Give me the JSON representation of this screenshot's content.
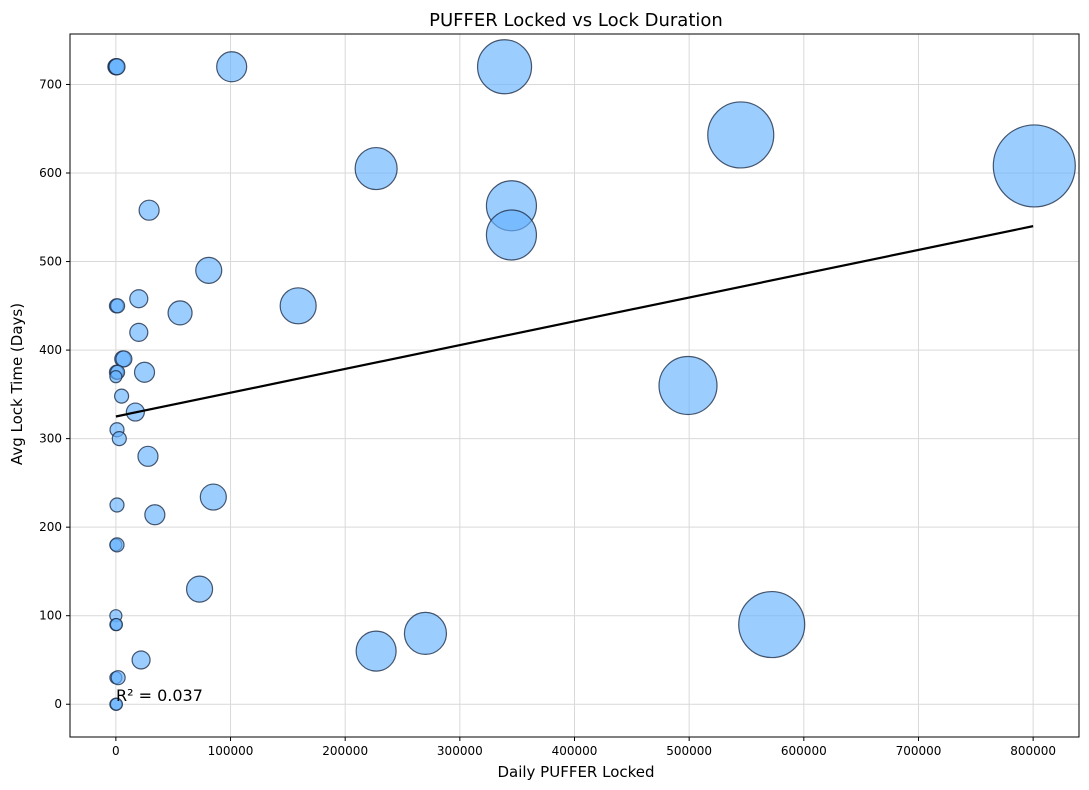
{
  "chart_data": {
    "type": "scatter",
    "title": "PUFFER Locked vs Lock Duration",
    "xlabel": "Daily PUFFER Locked",
    "ylabel": "Avg Lock Time (Days)",
    "xlim": [
      -40000,
      840000
    ],
    "ylim": [
      -37,
      757
    ],
    "xticks": [
      0,
      100000,
      200000,
      300000,
      400000,
      500000,
      600000,
      700000,
      800000
    ],
    "yticks": [
      0,
      100,
      200,
      300,
      400,
      500,
      600,
      700
    ],
    "grid": true,
    "annotation": "R² = 0.037",
    "colors": {
      "marker_fill": "#66b2ff",
      "marker_edge": "#1f2f4a",
      "trend": "#000000",
      "grid": "#d9d9d9"
    },
    "trendline": {
      "x": [
        0,
        800000
      ],
      "y": [
        325,
        540
      ]
    },
    "points": [
      {
        "x": 0,
        "y": 720,
        "size": 8
      },
      {
        "x": 500,
        "y": 720,
        "size": 8
      },
      {
        "x": 1000,
        "y": 720,
        "size": 8
      },
      {
        "x": 101000,
        "y": 720,
        "size": 15
      },
      {
        "x": 339000,
        "y": 720,
        "size": 27
      },
      {
        "x": 545000,
        "y": 643,
        "size": 33
      },
      {
        "x": 801000,
        "y": 608,
        "size": 41
      },
      {
        "x": 227000,
        "y": 605,
        "size": 21
      },
      {
        "x": 345000,
        "y": 563,
        "size": 25
      },
      {
        "x": 345000,
        "y": 530,
        "size": 25
      },
      {
        "x": 29000,
        "y": 558,
        "size": 10
      },
      {
        "x": 81000,
        "y": 490,
        "size": 13
      },
      {
        "x": 159000,
        "y": 450,
        "size": 18
      },
      {
        "x": 56000,
        "y": 442,
        "size": 12
      },
      {
        "x": 20000,
        "y": 458,
        "size": 9
      },
      {
        "x": 500,
        "y": 450,
        "size": 7
      },
      {
        "x": 1500,
        "y": 450,
        "size": 7
      },
      {
        "x": 20000,
        "y": 420,
        "size": 9
      },
      {
        "x": 6000,
        "y": 390,
        "size": 8
      },
      {
        "x": 7000,
        "y": 390,
        "size": 8
      },
      {
        "x": 25000,
        "y": 375,
        "size": 10
      },
      {
        "x": 500,
        "y": 375,
        "size": 7
      },
      {
        "x": 1500,
        "y": 375,
        "size": 7
      },
      {
        "x": 0,
        "y": 370,
        "size": 6
      },
      {
        "x": 499000,
        "y": 360,
        "size": 29
      },
      {
        "x": 5000,
        "y": 348,
        "size": 7
      },
      {
        "x": 17000,
        "y": 330,
        "size": 9
      },
      {
        "x": 1000,
        "y": 310,
        "size": 7
      },
      {
        "x": 3000,
        "y": 300,
        "size": 7
      },
      {
        "x": 28000,
        "y": 280,
        "size": 10
      },
      {
        "x": 85000,
        "y": 234,
        "size": 13
      },
      {
        "x": 1000,
        "y": 225,
        "size": 7
      },
      {
        "x": 34000,
        "y": 214,
        "size": 10
      },
      {
        "x": 0,
        "y": 180,
        "size": 6
      },
      {
        "x": 1000,
        "y": 180,
        "size": 7
      },
      {
        "x": 73000,
        "y": 130,
        "size": 13
      },
      {
        "x": 0,
        "y": 100,
        "size": 6
      },
      {
        "x": 0,
        "y": 90,
        "size": 6
      },
      {
        "x": 500,
        "y": 90,
        "size": 6
      },
      {
        "x": 572000,
        "y": 90,
        "size": 33
      },
      {
        "x": 270000,
        "y": 80,
        "size": 21
      },
      {
        "x": 227000,
        "y": 60,
        "size": 20
      },
      {
        "x": 22000,
        "y": 50,
        "size": 9
      },
      {
        "x": 0,
        "y": 30,
        "size": 6
      },
      {
        "x": 2000,
        "y": 30,
        "size": 7
      },
      {
        "x": 0,
        "y": 0,
        "size": 6
      },
      {
        "x": 500,
        "y": 0,
        "size": 6
      }
    ]
  }
}
